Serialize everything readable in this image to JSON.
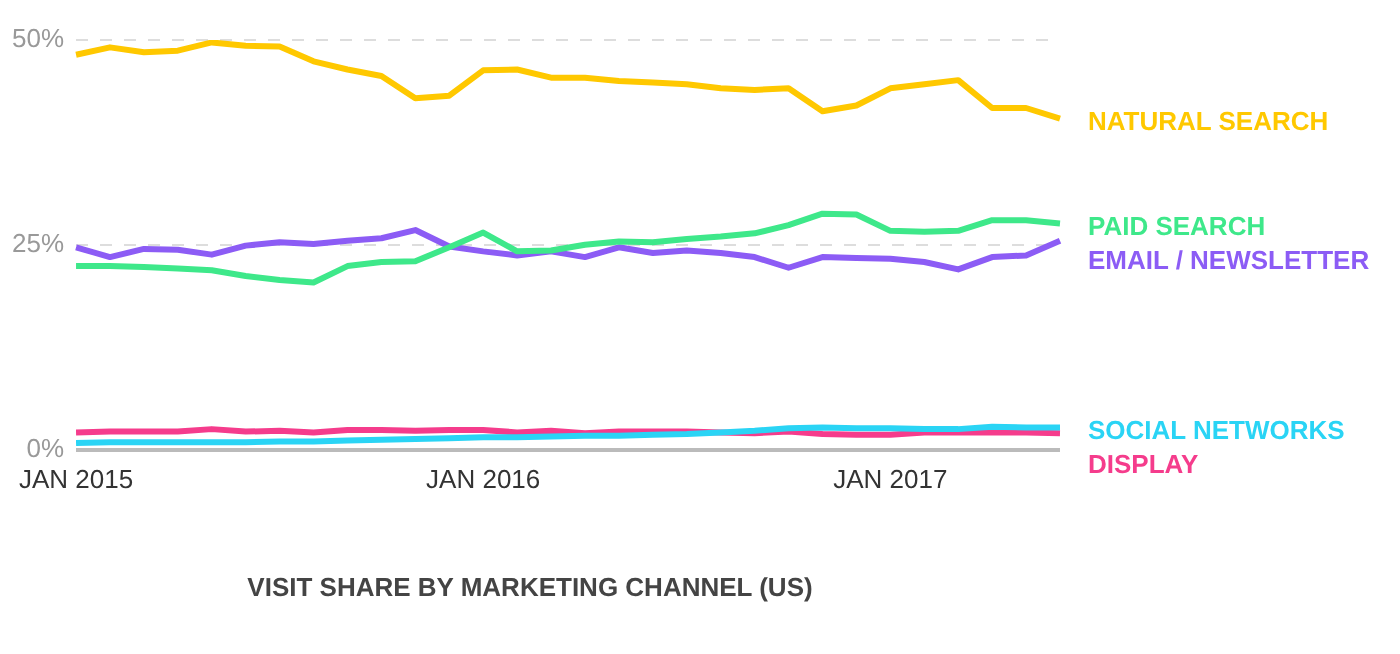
{
  "chart_data": {
    "type": "line",
    "title": "VISIT SHARE BY MARKETING CHANNEL (US)",
    "categories": [
      "JAN 2015",
      null,
      null,
      null,
      null,
      null,
      null,
      null,
      null,
      null,
      null,
      null,
      "JAN 2016",
      null,
      null,
      null,
      null,
      null,
      null,
      null,
      null,
      null,
      null,
      null,
      "JAN 2017",
      null,
      null,
      null,
      null,
      null
    ],
    "series": [
      {
        "name": "NATURAL SEARCH",
        "color": "#ffc800",
        "values": [
          48.2,
          49.1,
          48.5,
          48.7,
          49.7,
          49.3,
          49.2,
          47.4,
          46.4,
          45.6,
          42.9,
          43.2,
          46.3,
          46.4,
          45.4,
          45.4,
          45.0,
          44.8,
          44.6,
          44.1,
          43.9,
          44.1,
          41.3,
          42.0,
          44.1,
          44.6,
          45.1,
          41.7,
          41.7,
          40.4
        ]
      },
      {
        "name": "PAID SEARCH",
        "color": "#3ee88a",
        "values": [
          22.4,
          22.4,
          22.3,
          22.1,
          21.9,
          21.2,
          20.7,
          20.4,
          22.4,
          22.9,
          23.0,
          24.7,
          26.5,
          24.2,
          24.3,
          25.0,
          25.4,
          25.3,
          25.7,
          26.0,
          26.4,
          27.4,
          28.8,
          28.7,
          26.7,
          26.6,
          26.7,
          28.0,
          28.0,
          27.6
        ]
      },
      {
        "name": "EMAIL / NEWSLETTER",
        "color": "#8c5cf5",
        "values": [
          24.7,
          23.5,
          24.5,
          24.4,
          23.8,
          24.9,
          25.3,
          25.1,
          25.5,
          25.8,
          26.8,
          24.8,
          24.2,
          23.7,
          24.2,
          23.5,
          24.7,
          24.0,
          24.3,
          24.0,
          23.5,
          22.2,
          23.5,
          23.4,
          23.3,
          22.9,
          22.0,
          23.5,
          23.7,
          25.5
        ]
      },
      {
        "name": "SOCIAL NETWORKS",
        "color": "#2ad4f5",
        "values": [
          0.8,
          0.9,
          0.9,
          0.9,
          0.9,
          0.9,
          1.0,
          1.0,
          1.1,
          1.2,
          1.3,
          1.4,
          1.5,
          1.5,
          1.6,
          1.7,
          1.7,
          1.8,
          1.9,
          2.1,
          2.3,
          2.6,
          2.7,
          2.6,
          2.6,
          2.5,
          2.5,
          2.8,
          2.7,
          2.7
        ]
      },
      {
        "name": "DISPLAY",
        "color": "#f53c8c",
        "values": [
          2.1,
          2.2,
          2.2,
          2.2,
          2.5,
          2.2,
          2.3,
          2.1,
          2.4,
          2.4,
          2.3,
          2.4,
          2.4,
          2.1,
          2.3,
          2.0,
          2.2,
          2.2,
          2.2,
          2.1,
          2.0,
          2.2,
          1.9,
          1.8,
          1.8,
          2.1,
          2.1,
          2.1,
          2.1,
          2.0
        ]
      }
    ],
    "ylim": [
      0,
      50
    ],
    "yticks": [
      {
        "value": 0,
        "label": "0%"
      },
      {
        "value": 25,
        "label": "25%"
      },
      {
        "value": 50,
        "label": "50%"
      }
    ],
    "grid": "y",
    "marker": "none",
    "line_style": "solid"
  }
}
